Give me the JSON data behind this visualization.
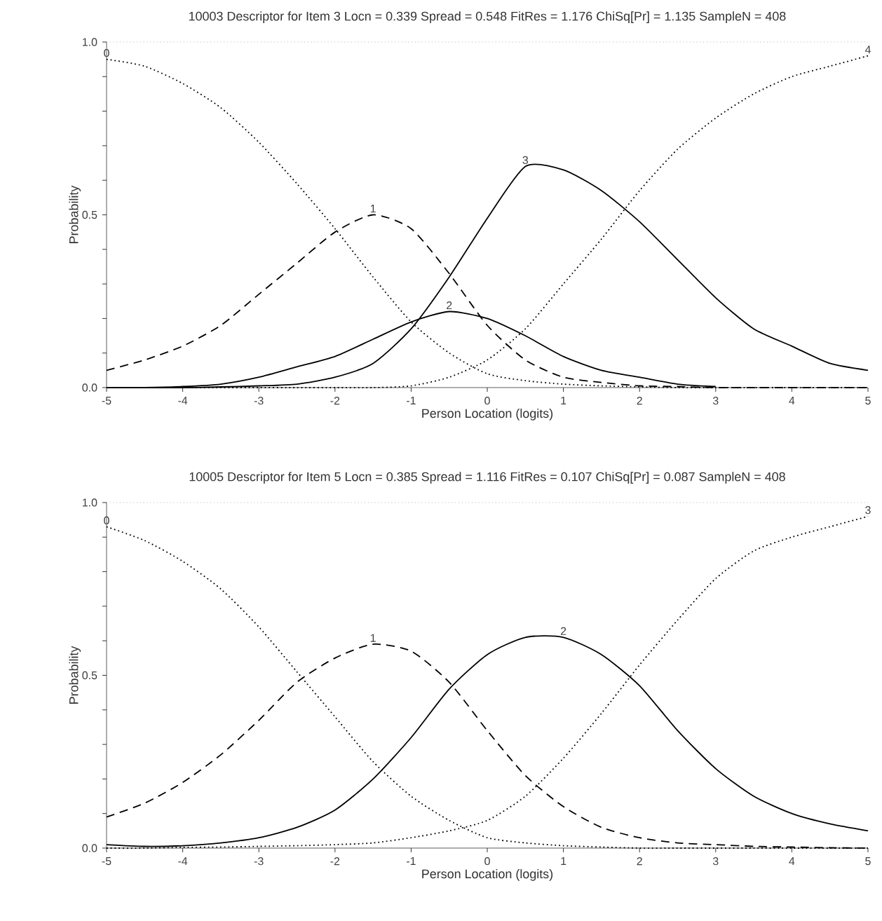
{
  "chart_data": [
    {
      "type": "line",
      "title": "10003 Descriptor for Item 3 Locn = 0.339 Spread = 0.548 FitRes = 1.176 ChiSq[Pr] = 1.135 SampleN = 408",
      "xlabel": "Person Location (logits)",
      "ylabel": "Probability",
      "x": [
        -5,
        -4.5,
        -4,
        -3.5,
        -3,
        -2.5,
        -2,
        -1.5,
        -1,
        -0.5,
        0,
        0.5,
        1,
        1.5,
        2,
        2.5,
        3,
        3.5,
        4,
        4.5,
        5
      ],
      "xlim": [
        -5,
        5
      ],
      "xticks": [
        -5,
        -4,
        -3,
        -2,
        -1,
        0,
        1,
        2,
        3,
        4,
        5
      ],
      "ylim": [
        0,
        1
      ],
      "yticks": [
        {
          "value": 0,
          "label": "0.0"
        },
        {
          "value": 0.1,
          "label": null
        },
        {
          "value": 0.2,
          "label": null
        },
        {
          "value": 0.3,
          "label": null
        },
        {
          "value": 0.4,
          "label": null
        },
        {
          "value": 0.5,
          "label": "0.5"
        },
        {
          "value": 0.6,
          "label": null
        },
        {
          "value": 0.7,
          "label": null
        },
        {
          "value": 0.8,
          "label": null
        },
        {
          "value": 0.9,
          "label": null
        },
        {
          "value": 1,
          "label": "1.0"
        }
      ],
      "ref_lines": [
        {
          "axis": "y",
          "value": 1,
          "color": "#888888",
          "line_style": "dotted"
        }
      ],
      "series": [
        {
          "name": "0",
          "color": "#000000",
          "line_style": "dotted",
          "values": [
            0.95,
            0.93,
            0.88,
            0.81,
            0.71,
            0.59,
            0.46,
            0.32,
            0.19,
            0.1,
            0.04,
            0.02,
            0.01,
            0.005,
            0.002,
            0,
            0,
            0,
            0,
            0,
            0
          ]
        },
        {
          "name": "1",
          "color": "#000000",
          "line_style": "dashed",
          "values": [
            0.05,
            0.08,
            0.12,
            0.18,
            0.27,
            0.36,
            0.45,
            0.5,
            0.46,
            0.33,
            0.18,
            0.08,
            0.03,
            0.015,
            0.005,
            0.003,
            0,
            0,
            0,
            0,
            0
          ]
        },
        {
          "name": "2",
          "color": "#000000",
          "line_style": "solid",
          "values": [
            0,
            0,
            0.003,
            0.01,
            0.03,
            0.06,
            0.09,
            0.14,
            0.19,
            0.22,
            0.2,
            0.15,
            0.09,
            0.05,
            0.03,
            0.01,
            0.003,
            null,
            null,
            null,
            null
          ]
        },
        {
          "name": "3",
          "color": "#000000",
          "line_style": "solid",
          "values": [
            0,
            0,
            0,
            0.002,
            0.005,
            0.01,
            0.03,
            0.07,
            0.17,
            0.32,
            0.49,
            0.64,
            0.63,
            0.57,
            0.48,
            0.37,
            0.26,
            0.17,
            0.12,
            0.07,
            0.05
          ]
        },
        {
          "name": "4",
          "color": "#000000",
          "line_style": "dotted",
          "values": [
            0,
            0,
            0,
            0,
            0,
            0,
            0,
            0,
            0.005,
            0.03,
            0.08,
            0.17,
            0.3,
            0.43,
            0.57,
            0.69,
            0.78,
            0.85,
            0.9,
            0.93,
            0.96
          ]
        }
      ]
    },
    {
      "type": "line",
      "title": "10005 Descriptor for Item 5 Locn = 0.385 Spread = 1.116 FitRes = 0.107 ChiSq[Pr] = 0.087 SampleN = 408",
      "xlabel": "Person Location (logits)",
      "ylabel": "Probability",
      "x": [
        -5,
        -4.5,
        -4,
        -3.5,
        -3,
        -2.5,
        -2,
        -1.5,
        -1,
        -0.5,
        0,
        0.5,
        1,
        1.5,
        2,
        2.5,
        3,
        3.5,
        4,
        4.5,
        5
      ],
      "xlim": [
        -5,
        5
      ],
      "xticks": [
        -5,
        -4,
        -3,
        -2,
        -1,
        0,
        1,
        2,
        3,
        4,
        5
      ],
      "ylim": [
        0,
        1
      ],
      "yticks": [
        {
          "value": 0,
          "label": "0.0"
        },
        {
          "value": 0.1,
          "label": null
        },
        {
          "value": 0.2,
          "label": null
        },
        {
          "value": 0.3,
          "label": null
        },
        {
          "value": 0.4,
          "label": null
        },
        {
          "value": 0.5,
          "label": "0.5"
        },
        {
          "value": 0.6,
          "label": null
        },
        {
          "value": 0.7,
          "label": null
        },
        {
          "value": 0.8,
          "label": null
        },
        {
          "value": 0.9,
          "label": null
        },
        {
          "value": 1,
          "label": "1.0"
        }
      ],
      "ref_lines": [
        {
          "axis": "y",
          "value": 1,
          "color": "#888888",
          "line_style": "dotted"
        }
      ],
      "series": [
        {
          "name": "0",
          "color": "#000000",
          "line_style": "dotted",
          "values": [
            0.93,
            0.89,
            0.83,
            0.75,
            0.64,
            0.51,
            0.38,
            0.25,
            0.15,
            0.08,
            0.03,
            0.015,
            0.007,
            0.003,
            0,
            0,
            0,
            0,
            0,
            0,
            0
          ]
        },
        {
          "name": "1",
          "color": "#000000",
          "line_style": "dashed",
          "values": [
            0.09,
            0.13,
            0.19,
            0.27,
            0.37,
            0.48,
            0.55,
            0.59,
            0.57,
            0.48,
            0.34,
            0.21,
            0.12,
            0.06,
            0.03,
            0.015,
            0.01,
            0.005,
            0.003,
            0.001,
            0
          ]
        },
        {
          "name": "2",
          "color": "#000000",
          "line_style": "solid",
          "values": [
            0.01,
            0.005,
            0.007,
            0.015,
            0.03,
            0.06,
            0.11,
            0.2,
            0.32,
            0.46,
            0.56,
            0.61,
            0.61,
            0.56,
            0.47,
            0.34,
            0.23,
            0.15,
            0.1,
            0.07,
            0.05
          ]
        },
        {
          "name": "3",
          "color": "#000000",
          "line_style": "dotted",
          "values": [
            0,
            0,
            0.002,
            0.003,
            0.005,
            0.007,
            0.01,
            0.015,
            0.03,
            0.05,
            0.08,
            0.15,
            0.26,
            0.39,
            0.53,
            0.66,
            0.78,
            0.86,
            0.9,
            0.93,
            0.96
          ]
        }
      ]
    }
  ]
}
